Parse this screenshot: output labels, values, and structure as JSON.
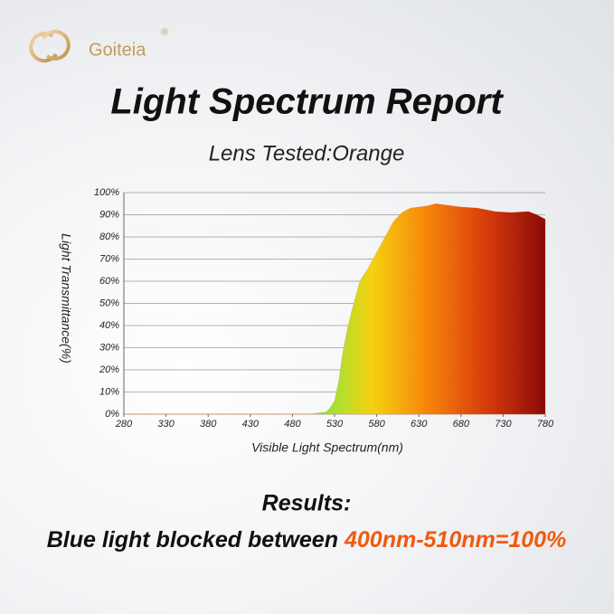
{
  "brand": {
    "name": "Goiteia",
    "mark": "®"
  },
  "chart_data": {
    "type": "area",
    "title": "Light Spectrum Report",
    "subtitle": "Lens Tested:Orange",
    "x_label": "Visible Light Spectrum(nm)",
    "y_label": "Light Transmittance(%)",
    "x": [
      280,
      500,
      510,
      520,
      525,
      530,
      535,
      540,
      545,
      550,
      560,
      570,
      580,
      590,
      600,
      610,
      620,
      640,
      650,
      660,
      680,
      700,
      720,
      740,
      760,
      770,
      780
    ],
    "series": [
      {
        "name": "Orange",
        "color": "#e85a0c",
        "values": [
          0,
          0,
          0.5,
          1,
          3,
          6,
          15,
          28,
          38,
          46,
          60,
          66,
          73,
          80,
          87,
          91,
          93,
          94,
          95,
          94.5,
          93.5,
          93,
          91.5,
          91,
          91.5,
          90,
          88
        ]
      }
    ],
    "fill_gradient": [
      "#7ce84a",
      "#f5d20f",
      "#f7820a",
      "#d63a0c",
      "#8a0a08"
    ],
    "xlim": [
      280,
      780
    ],
    "xticks": [
      280,
      330,
      380,
      430,
      480,
      530,
      580,
      630,
      680,
      730,
      780
    ],
    "ylim": [
      0,
      100
    ],
    "yticks": [
      {
        "value": 0,
        "label": "0%"
      },
      {
        "value": 10,
        "label": "10%"
      },
      {
        "value": 20,
        "label": "20%"
      },
      {
        "value": 30,
        "label": "30%"
      },
      {
        "value": 40,
        "label": "40%"
      },
      {
        "value": 50,
        "label": "50%"
      },
      {
        "value": 60,
        "label": "60%"
      },
      {
        "value": 70,
        "label": "70%"
      },
      {
        "value": 80,
        "label": "80%"
      },
      {
        "value": 90,
        "label": "90%"
      },
      {
        "value": 100,
        "label": "100%"
      }
    ],
    "grid": true
  },
  "results": {
    "heading": "Results:",
    "text": "Blue light blocked between",
    "highlight": "400nm-510nm=100%"
  }
}
